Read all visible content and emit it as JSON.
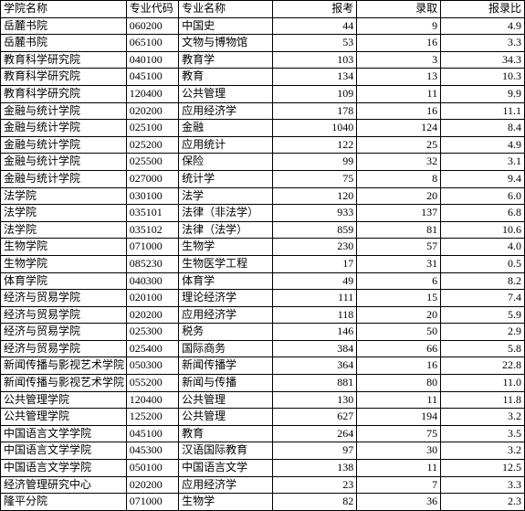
{
  "columns": [
    "学院名称",
    "专业代码",
    "专业名称",
    "报考",
    "录取",
    "报录比"
  ],
  "rows": [
    [
      "岳麓书院",
      "060200",
      "中国史",
      "44",
      "9",
      "4.9"
    ],
    [
      "岳麓书院",
      "065100",
      "文物与博物馆",
      "53",
      "16",
      "3.3"
    ],
    [
      "教育科学研究院",
      "040100",
      "教育学",
      "103",
      "3",
      "34.3"
    ],
    [
      "教育科学研究院",
      "045100",
      "教育",
      "134",
      "13",
      "10.3"
    ],
    [
      "教育科学研究院",
      "120400",
      "公共管理",
      "109",
      "11",
      "9.9"
    ],
    [
      "金融与统计学院",
      "020200",
      "应用经济学",
      "178",
      "16",
      "11.1"
    ],
    [
      "金融与统计学院",
      "025100",
      "金融",
      "1040",
      "124",
      "8.4"
    ],
    [
      "金融与统计学院",
      "025200",
      "应用统计",
      "122",
      "25",
      "4.9"
    ],
    [
      "金融与统计学院",
      "025500",
      "保险",
      "99",
      "32",
      "3.1"
    ],
    [
      "金融与统计学院",
      "027000",
      "统计学",
      "75",
      "8",
      "9.4"
    ],
    [
      "法学院",
      "030100",
      "法学",
      "120",
      "20",
      "6.0"
    ],
    [
      "法学院",
      "035101",
      "法律（非法学）",
      "933",
      "137",
      "6.8"
    ],
    [
      "法学院",
      "035102",
      "法律（法学）",
      "859",
      "81",
      "10.6"
    ],
    [
      "生物学院",
      "071000",
      "生物学",
      "230",
      "57",
      "4.0"
    ],
    [
      "生物学院",
      "085230",
      "生物医学工程",
      "17",
      "31",
      "0.5"
    ],
    [
      "体育学院",
      "040300",
      "体育学",
      "49",
      "6",
      "8.2"
    ],
    [
      "经济与贸易学院",
      "020100",
      "理论经济学",
      "111",
      "15",
      "7.4"
    ],
    [
      "经济与贸易学院",
      "020200",
      "应用经济学",
      "118",
      "20",
      "5.9"
    ],
    [
      "经济与贸易学院",
      "025300",
      "税务",
      "146",
      "50",
      "2.9"
    ],
    [
      "经济与贸易学院",
      "025400",
      "国际商务",
      "384",
      "66",
      "5.8"
    ],
    [
      "新闻传播与影视艺术学院",
      "050300",
      "新闻传播学",
      "364",
      "16",
      "22.8"
    ],
    [
      "新闻传播与影视艺术学院",
      "055200",
      "新闻与传播",
      "881",
      "80",
      "11.0"
    ],
    [
      "公共管理学院",
      "120400",
      "公共管理",
      "130",
      "11",
      "11.8"
    ],
    [
      "公共管理学院",
      "125200",
      "公共管理",
      "627",
      "194",
      "3.2"
    ],
    [
      "中国语言文学学院",
      "045100",
      "教育",
      "264",
      "75",
      "3.5"
    ],
    [
      "中国语言文学学院",
      "045300",
      "汉语国际教育",
      "97",
      "30",
      "3.2"
    ],
    [
      "中国语言文学学院",
      "050100",
      "中国语言文学",
      "138",
      "11",
      "12.5"
    ],
    [
      "经济管理研究中心",
      "020200",
      "应用经济学",
      "23",
      "7",
      "3.3"
    ],
    [
      "隆平分院",
      "071000",
      "生物学",
      "82",
      "36",
      "2.3"
    ]
  ]
}
